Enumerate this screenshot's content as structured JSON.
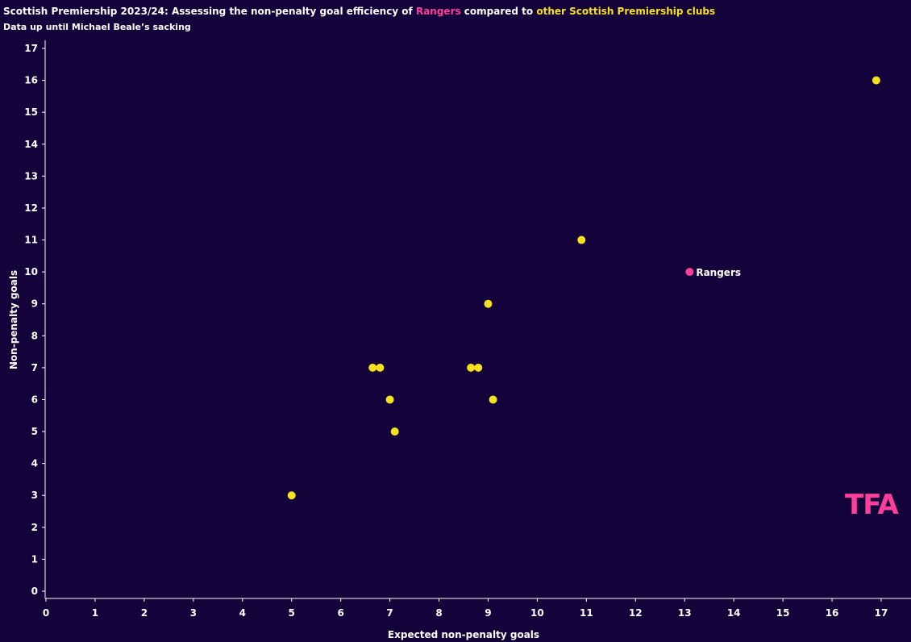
{
  "header": {
    "title_part1": "Scottish Premiership 2023/24: Assessing the non-penalty goal efficiency of ",
    "title_rangers": "Rangers",
    "title_part2": " compared to ",
    "title_others": "other Scottish Premiership clubs",
    "subtitle": "Data up until Michael Beale’s sacking"
  },
  "logo": {
    "text": "TFA"
  },
  "colors": {
    "background": "#14023a",
    "rangers": "#ff3f9b",
    "others": "#f5e21a",
    "axis": "#ffffff"
  },
  "chart_data": {
    "type": "scatter",
    "title": "Scottish Premiership 2023/24: Assessing the non-penalty goal efficiency of Rangers compared to other Scottish Premiership clubs",
    "subtitle": "Data up until Michael Beale’s sacking",
    "xlabel": "Expected non-penalty goals",
    "ylabel": "Non-penalty goals",
    "xlim": [
      0,
      17
    ],
    "ylim": [
      0,
      17
    ],
    "x_ticks": [
      0,
      1,
      2,
      3,
      4,
      5,
      6,
      7,
      8,
      9,
      10,
      11,
      12,
      13,
      14,
      15,
      16,
      17
    ],
    "y_ticks": [
      0,
      1,
      2,
      3,
      4,
      5,
      6,
      7,
      8,
      9,
      10,
      11,
      12,
      13,
      14,
      15,
      16,
      17
    ],
    "grid": false,
    "series": [
      {
        "name": "Rangers",
        "color": "#ff3f9b",
        "points": [
          {
            "x": 13.1,
            "y": 10,
            "label": "Rangers"
          }
        ]
      },
      {
        "name": "other Scottish Premiership clubs",
        "color": "#f5e21a",
        "points": [
          {
            "x": 16.9,
            "y": 16
          },
          {
            "x": 10.9,
            "y": 11
          },
          {
            "x": 9.0,
            "y": 9
          },
          {
            "x": 6.65,
            "y": 7
          },
          {
            "x": 6.8,
            "y": 7
          },
          {
            "x": 8.65,
            "y": 7
          },
          {
            "x": 8.8,
            "y": 7
          },
          {
            "x": 7.0,
            "y": 6
          },
          {
            "x": 9.1,
            "y": 6
          },
          {
            "x": 7.1,
            "y": 5
          },
          {
            "x": 5.0,
            "y": 3
          }
        ]
      }
    ]
  }
}
